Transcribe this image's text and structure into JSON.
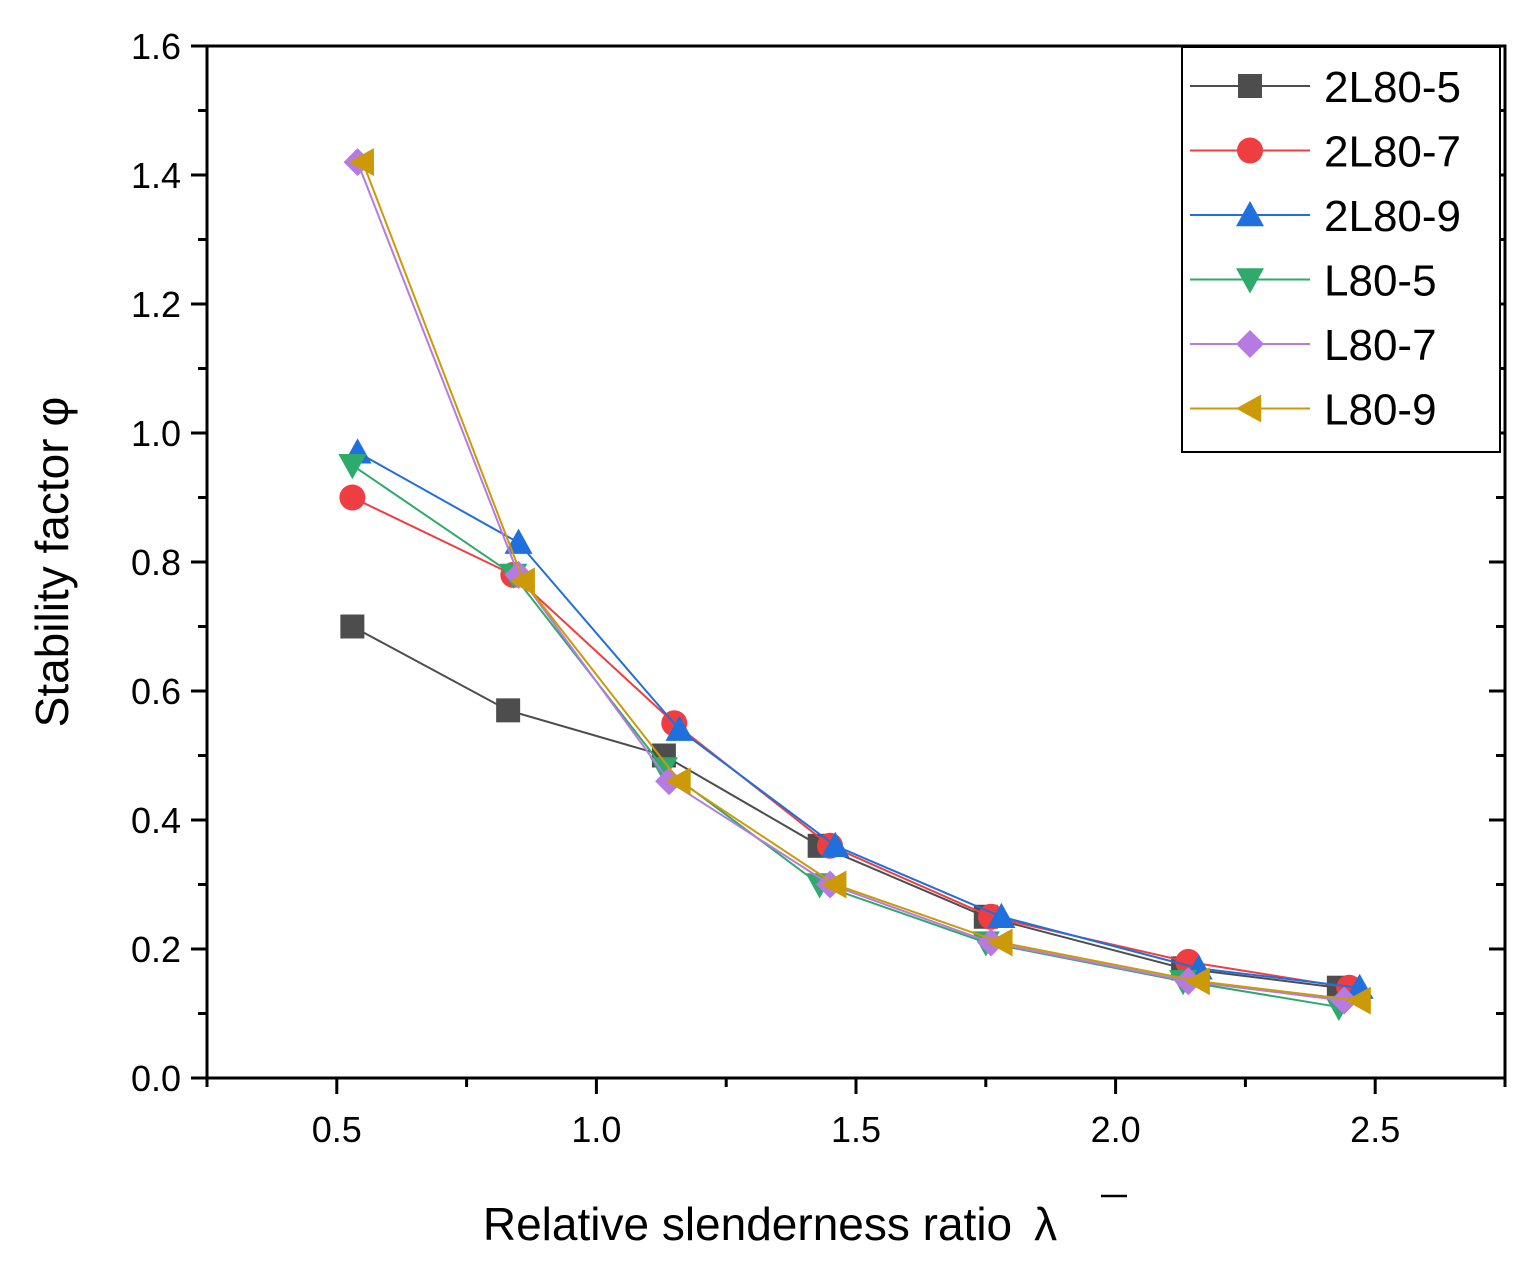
{
  "chart_data": {
    "type": "line",
    "xlabel": "Relative slenderness ratio",
    "xlabel_symbol": "λ",
    "ylabel": "Stability factor",
    "ylabel_symbol": "φ",
    "xlim": [
      0.25,
      2.75
    ],
    "ylim": [
      0.0,
      1.6
    ],
    "xticks": [
      "0.5",
      "1.0",
      "1.5",
      "2.0",
      "2.5"
    ],
    "yticks": [
      "0.0",
      "0.2",
      "0.4",
      "0.6",
      "0.8",
      "1.0",
      "1.2",
      "1.4",
      "1.6"
    ],
    "grid": false,
    "legend_position": "top-right",
    "series": [
      {
        "name": "2L80-5",
        "color": "#4d4d4d",
        "marker": "square",
        "x": [
          0.53,
          0.83,
          1.13,
          1.43,
          1.75,
          2.13,
          2.43
        ],
        "y": [
          0.7,
          0.57,
          0.5,
          0.36,
          0.25,
          0.17,
          0.14
        ]
      },
      {
        "name": "2L80-7",
        "color": "#ef3e42",
        "marker": "circle",
        "x": [
          0.53,
          0.84,
          1.15,
          1.45,
          1.76,
          2.14,
          2.45
        ],
        "y": [
          0.9,
          0.78,
          0.55,
          0.36,
          0.25,
          0.18,
          0.14
        ]
      },
      {
        "name": "2L80-9",
        "color": "#1f6fde",
        "marker": "triangle-up",
        "x": [
          0.54,
          0.85,
          1.16,
          1.46,
          1.78,
          2.16,
          2.47
        ],
        "y": [
          0.97,
          0.83,
          0.54,
          0.36,
          0.25,
          0.17,
          0.14
        ]
      },
      {
        "name": "L80-5",
        "color": "#2eaa6b",
        "marker": "triangle-down",
        "x": [
          0.53,
          0.84,
          1.13,
          1.43,
          1.75,
          2.13,
          2.43
        ],
        "y": [
          0.95,
          0.78,
          0.48,
          0.3,
          0.21,
          0.15,
          0.11
        ]
      },
      {
        "name": "L80-7",
        "color": "#b57be3",
        "marker": "diamond",
        "x": [
          0.54,
          0.85,
          1.14,
          1.45,
          1.76,
          2.14,
          2.44
        ],
        "y": [
          1.42,
          0.78,
          0.46,
          0.3,
          0.21,
          0.15,
          0.12
        ]
      },
      {
        "name": "L80-9",
        "color": "#cc9a06",
        "marker": "triangle-left",
        "x": [
          0.55,
          0.86,
          1.16,
          1.46,
          1.78,
          2.16,
          2.47
        ],
        "y": [
          1.42,
          0.77,
          0.46,
          0.3,
          0.21,
          0.15,
          0.12
        ]
      }
    ]
  }
}
